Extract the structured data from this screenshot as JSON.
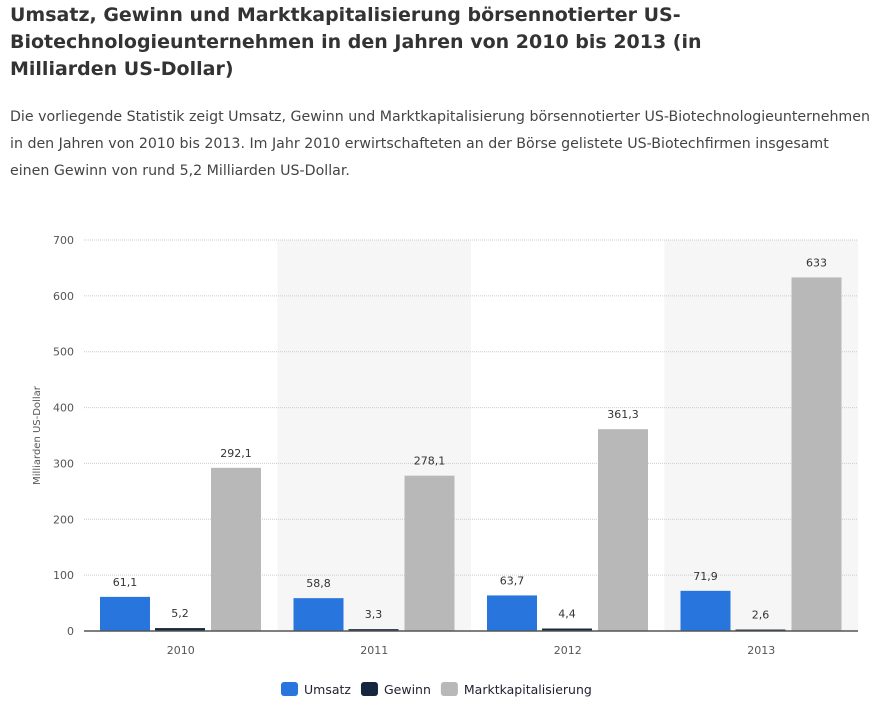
{
  "title": "Umsatz, Gewinn und Marktkapitalisierung börsennotierter US-Biotechnologieunternehmen in den Jahren von 2010 bis 2013 (in Milliarden US-Dollar)",
  "description": "Die vorliegende Statistik zeigt Umsatz, Gewinn und Marktkapitalisierung börsennotierter US-Biotechnologieunternehmen in den Jahren von 2010 bis 2013. Im Jahr 2010 erwirtschafteten an der Börse gelistete US-Biotechfirmen insgesamt einen Gewinn von rund 5,2 Milliarden US-Dollar.",
  "chart_data": {
    "type": "bar",
    "categories": [
      "2010",
      "2011",
      "2012",
      "2013"
    ],
    "series": [
      {
        "name": "Umsatz",
        "values": [
          61.1,
          58.8,
          63.7,
          71.9
        ],
        "labels": [
          "61,1",
          "58,8",
          "63,7",
          "71,9"
        ],
        "color": "#2876dd"
      },
      {
        "name": "Gewinn",
        "values": [
          5.2,
          3.3,
          4.4,
          2.6
        ],
        "labels": [
          "5,2",
          "3,3",
          "4,4",
          "2,6"
        ],
        "color": "#15263e"
      },
      {
        "name": "Marktkapitalisierung",
        "values": [
          292.1,
          278.1,
          361.3,
          633
        ],
        "labels": [
          "292,1",
          "278,1",
          "361,3",
          "633"
        ],
        "color": "#b8b8b8"
      }
    ],
    "xlabel": "",
    "ylabel": "Milliarden US-Dollar",
    "ylim": [
      0,
      700
    ],
    "yticks": [
      0,
      100,
      200,
      300,
      400,
      500,
      600,
      700
    ],
    "grid": true,
    "legend": "bottom"
  }
}
